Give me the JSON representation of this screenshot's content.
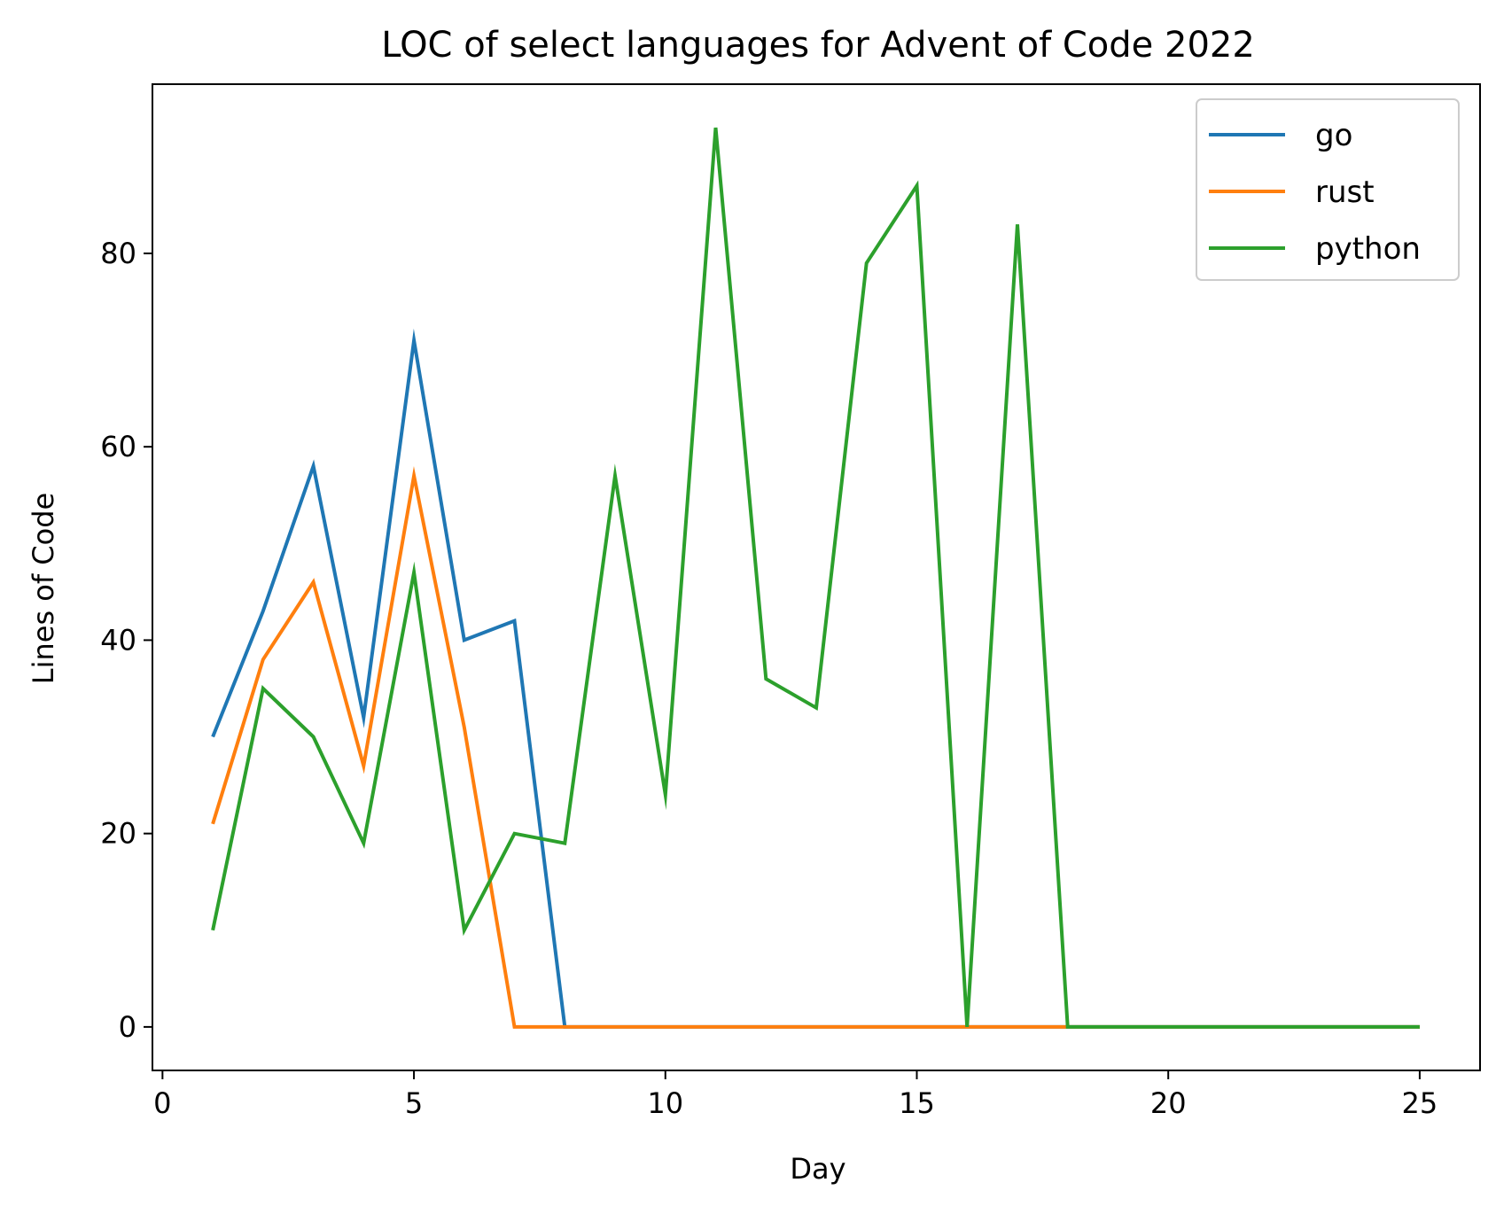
{
  "chart_data": {
    "type": "line",
    "title": "LOC of select languages for Advent of Code 2022",
    "xlabel": "Day",
    "ylabel": "Lines of Code",
    "xlim": [
      -0.2,
      26.2
    ],
    "ylim": [
      -4.5,
      97.5
    ],
    "xticks": [
      0,
      5,
      10,
      15,
      20,
      25
    ],
    "yticks": [
      0,
      20,
      40,
      60,
      80
    ],
    "x": [
      1,
      2,
      3,
      4,
      5,
      6,
      7,
      8,
      9,
      10,
      11,
      12,
      13,
      14,
      15,
      16,
      17,
      18,
      19,
      20,
      21,
      22,
      23,
      24,
      25
    ],
    "series": [
      {
        "name": "go",
        "color": "#1f77b4",
        "values": [
          30,
          43,
          58,
          32,
          71,
          40,
          42,
          0,
          0,
          0,
          0,
          0,
          0,
          0,
          0,
          0,
          0,
          0,
          0,
          0,
          0,
          0,
          0,
          0,
          0
        ]
      },
      {
        "name": "rust",
        "color": "#ff7f0e",
        "values": [
          21,
          38,
          46,
          27,
          57,
          31,
          0,
          0,
          0,
          0,
          0,
          0,
          0,
          0,
          0,
          0,
          0,
          0,
          0,
          0,
          0,
          0,
          0,
          0,
          0
        ]
      },
      {
        "name": "python",
        "color": "#2ca02c",
        "values": [
          10,
          35,
          30,
          19,
          47,
          10,
          20,
          19,
          57,
          24,
          93,
          36,
          33,
          79,
          87,
          0,
          83,
          0,
          0,
          0,
          0,
          0,
          0,
          0,
          0
        ]
      }
    ],
    "legend_position": "top-right",
    "grid": false
  }
}
